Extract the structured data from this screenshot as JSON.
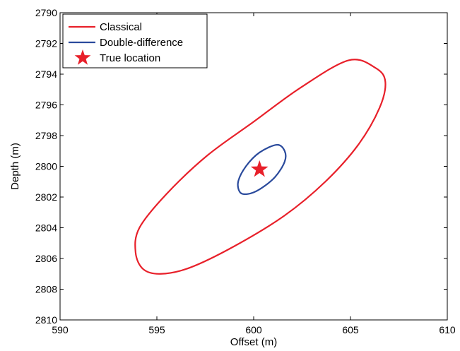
{
  "chart_data": {
    "type": "line",
    "xlabel": "Offset (m)",
    "ylabel": "Depth (m)",
    "xlim": [
      590,
      610
    ],
    "ylim": [
      2790,
      2810
    ],
    "y_reversed": true,
    "xticks": [
      "590",
      "595",
      "600",
      "605",
      "610"
    ],
    "yticks": [
      "2790",
      "2792",
      "2794",
      "2796",
      "2798",
      "2800",
      "2802",
      "2804",
      "2806",
      "2808",
      "2810"
    ],
    "grid": false,
    "legend_position": "top-left",
    "series": [
      {
        "name": "Classical",
        "color": "#e8202a",
        "marker": "none",
        "closed": true,
        "points": [
          [
            604.9,
            2793.1
          ],
          [
            606.3,
            2793.6
          ],
          [
            606.8,
            2794.5
          ],
          [
            606.5,
            2796.2
          ],
          [
            605.4,
            2798.6
          ],
          [
            603.7,
            2801.0
          ],
          [
            601.6,
            2803.2
          ],
          [
            599.0,
            2805.2
          ],
          [
            596.7,
            2806.6
          ],
          [
            595.2,
            2807.0
          ],
          [
            594.3,
            2806.7
          ],
          [
            593.9,
            2805.6
          ],
          [
            594.1,
            2804.0
          ],
          [
            595.5,
            2801.8
          ],
          [
            597.6,
            2799.3
          ],
          [
            600.0,
            2797.1
          ],
          [
            602.4,
            2794.9
          ]
        ]
      },
      {
        "name": "Double-difference",
        "color": "#2a4a9c",
        "marker": "none",
        "closed": true,
        "points": [
          [
            601.2,
            2798.6
          ],
          [
            601.6,
            2799.0
          ],
          [
            601.6,
            2799.7
          ],
          [
            601.1,
            2800.7
          ],
          [
            600.3,
            2801.5
          ],
          [
            599.7,
            2801.8
          ],
          [
            599.3,
            2801.7
          ],
          [
            599.2,
            2801.0
          ],
          [
            599.6,
            2800.0
          ],
          [
            600.3,
            2799.1
          ]
        ]
      },
      {
        "name": "True location",
        "color": "#e8202a",
        "marker": "star",
        "points": [
          [
            600.3,
            2800.2
          ]
        ]
      }
    ]
  }
}
